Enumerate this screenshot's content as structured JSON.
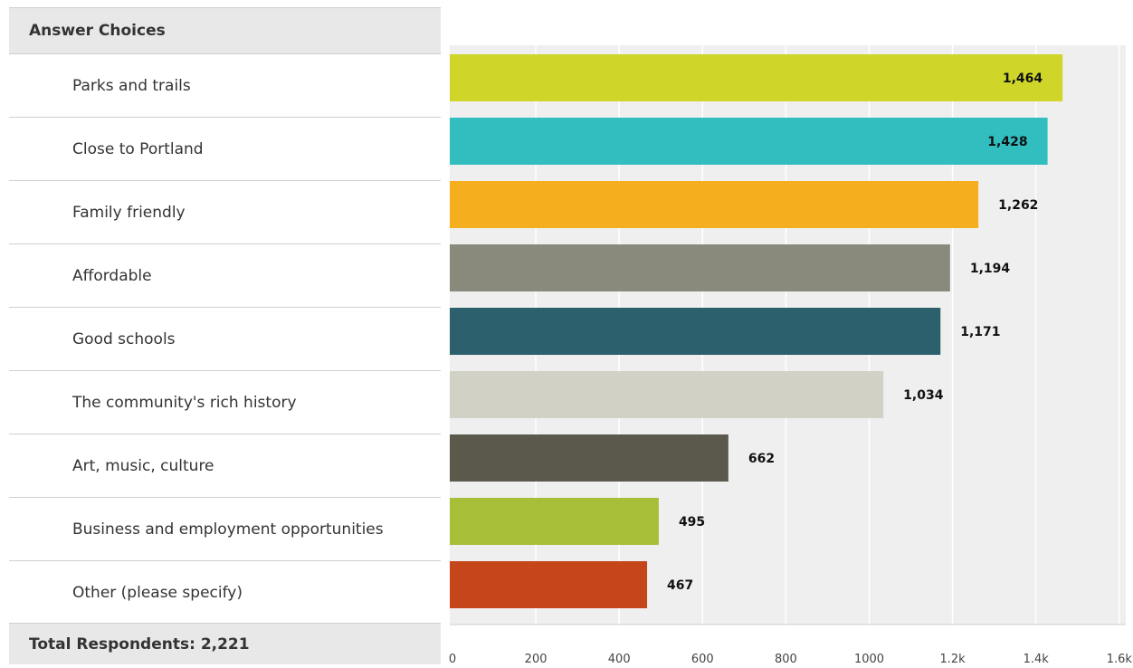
{
  "table": {
    "header": "Answer Choices",
    "footer": "Total Respondents: 2,221"
  },
  "chart_data": {
    "type": "bar",
    "orientation": "horizontal",
    "categories": [
      "Parks and trails",
      "Close to Portland",
      "Family friendly",
      "Affordable",
      "Good schools",
      "The community's rich history",
      "Art, music, culture",
      "Business and employment opportunities",
      "Other (please specify)"
    ],
    "values": [
      1464,
      1428,
      1262,
      1194,
      1171,
      1034,
      662,
      495,
      467
    ],
    "value_labels": [
      "1,464",
      "1,428",
      "1,262",
      "1,194",
      "1,171",
      "1,034",
      "662",
      "495",
      "467"
    ],
    "colors": [
      "#cfd629",
      "#32bdbf",
      "#f4ae1e",
      "#898a7b",
      "#2d606d",
      "#d1d1c5",
      "#5b594c",
      "#a7be38",
      "#c5461b"
    ],
    "xlim": [
      0,
      1600
    ],
    "x_ticks": [
      0,
      200,
      400,
      600,
      800,
      1000,
      1200,
      1400,
      1600
    ],
    "x_tick_labels": [
      "0",
      "200",
      "400",
      "600",
      "800",
      "1000",
      "1.2k",
      "1.4k",
      "1.6k"
    ],
    "grid": true,
    "title": "",
    "xlabel": "",
    "ylabel": ""
  }
}
